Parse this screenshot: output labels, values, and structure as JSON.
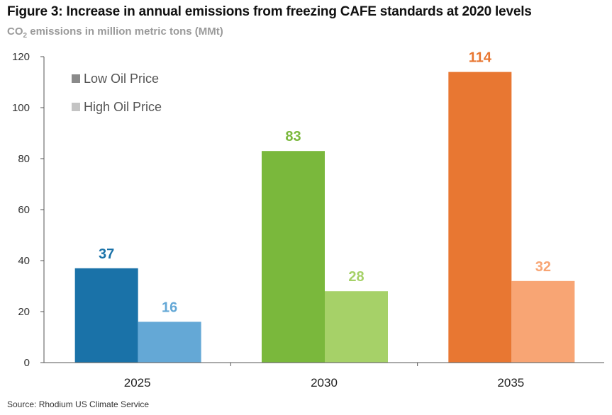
{
  "header": {
    "title": "Figure 3: Increase in annual emissions from freezing CAFE standards at 2020 levels",
    "subtitle_prefix": "CO",
    "subtitle_sub": "2",
    "subtitle_suffix": " emissions in million metric tons (MMt)"
  },
  "footer": {
    "source": "Source: Rhodium US Climate Service"
  },
  "chart_data": {
    "type": "bar",
    "title": "Figure 3: Increase in annual emissions from freezing CAFE standards at 2020 levels",
    "subtitle": "CO2 emissions in million metric tons (MMt)",
    "xlabel": "",
    "ylabel": "CO2 emissions in million metric tons (MMt)",
    "ylim": [
      0,
      120
    ],
    "yticks": [
      "0",
      "20",
      "40",
      "60",
      "80",
      "100",
      "120"
    ],
    "grid": false,
    "legend_position": "top-left",
    "categories": [
      "2025",
      "2030",
      "2035"
    ],
    "series": [
      {
        "name": "Low Oil Price",
        "legend_color": "#8a8a8a",
        "values": [
          37,
          83,
          114
        ],
        "labels": [
          "37",
          "83",
          "114"
        ],
        "colors": [
          "#1a72a8",
          "#7ab83c",
          "#e87732"
        ]
      },
      {
        "name": "High Oil Price",
        "legend_color": "#c4c4c4",
        "values": [
          16,
          28,
          32
        ],
        "labels": [
          "16",
          "28",
          "32"
        ],
        "colors": [
          "#64a8d6",
          "#a6d168",
          "#f8a574"
        ]
      }
    ]
  }
}
